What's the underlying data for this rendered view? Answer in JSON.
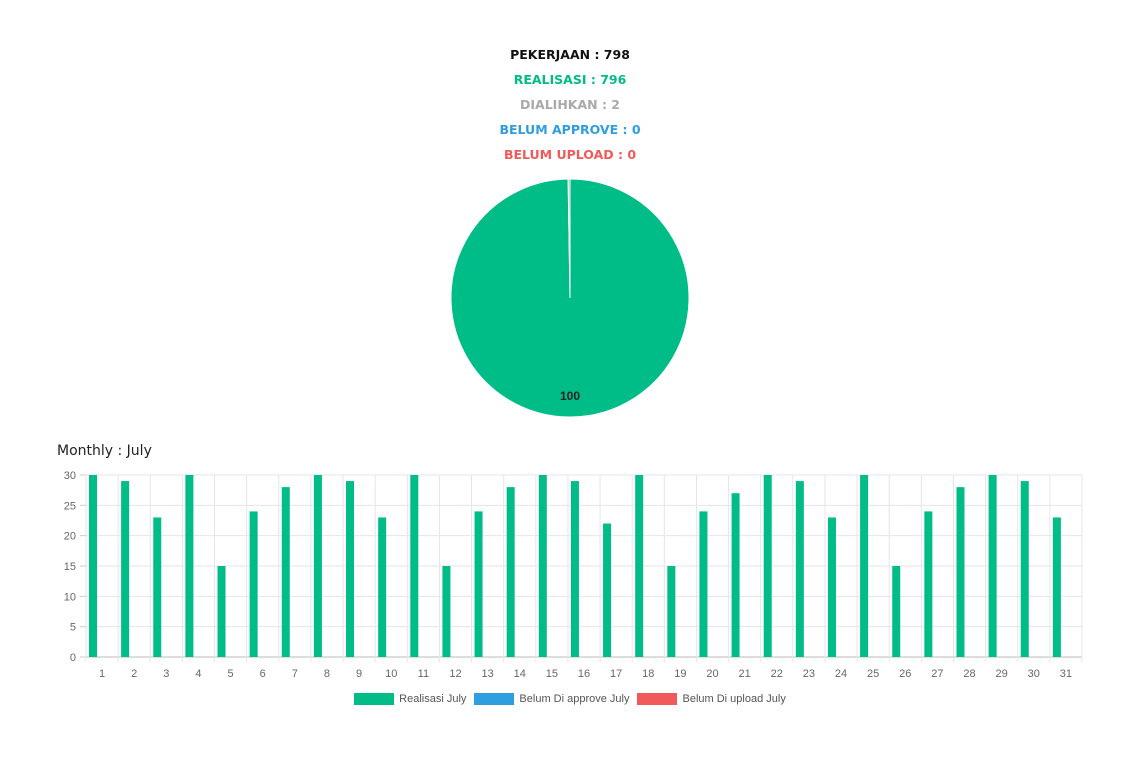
{
  "summary": {
    "pekerjaan": "PEKERJAAN : 798",
    "realisasi": "REALISASI : 796",
    "dialihkan": "DIALIHKAN : 2",
    "belum_approve": "BELUM APPROVE : 0",
    "belum_upload": "BELUM UPLOAD : 0"
  },
  "monthly_title": "Monthly : July",
  "colors": {
    "realisasi": "#00bd87",
    "belum_approve": "#2f9ede",
    "belum_upload": "#f15a5a",
    "dialihkan": "#a9a9a9",
    "grid": "#e6e6e6"
  },
  "chart_data": [
    {
      "type": "pie",
      "slices": [
        {
          "label": "REALISASI",
          "value": 796,
          "color": "#00bd87"
        },
        {
          "label": "DIALIHKAN",
          "value": 2,
          "color": "#a9a9a9"
        }
      ],
      "data_labels": [
        "100"
      ]
    },
    {
      "type": "bar",
      "categories": [
        "1",
        "2",
        "3",
        "4",
        "5",
        "6",
        "7",
        "8",
        "9",
        "10",
        "11",
        "12",
        "13",
        "14",
        "15",
        "16",
        "17",
        "18",
        "19",
        "20",
        "21",
        "22",
        "23",
        "24",
        "25",
        "26",
        "27",
        "28",
        "29",
        "30",
        "31"
      ],
      "series": [
        {
          "name": "Realisasi July",
          "color": "#00bd87",
          "values": [
            30,
            29,
            23,
            30,
            15,
            24,
            28,
            30,
            29,
            23,
            30,
            15,
            24,
            28,
            30,
            29,
            22,
            30,
            15,
            24,
            27,
            30,
            29,
            23,
            30,
            15,
            24,
            28,
            30,
            29,
            23
          ]
        },
        {
          "name": "Belum Di approve July",
          "color": "#2f9ede",
          "values": [
            0,
            0,
            0,
            0,
            0,
            0,
            0,
            0,
            0,
            0,
            0,
            0,
            0,
            0,
            0,
            0,
            0,
            0,
            0,
            0,
            0,
            0,
            0,
            0,
            0,
            0,
            0,
            0,
            0,
            0,
            0
          ]
        },
        {
          "name": "Belum Di upload July",
          "color": "#f15a5a",
          "values": [
            0,
            0,
            0,
            0,
            0,
            0,
            0,
            0,
            0,
            0,
            0,
            0,
            0,
            0,
            0,
            0,
            0,
            0,
            0,
            0,
            0,
            0,
            0,
            0,
            0,
            0,
            0,
            0,
            0,
            0,
            0
          ]
        }
      ],
      "yticks": [
        "0",
        "5",
        "10",
        "15",
        "20",
        "25",
        "30"
      ],
      "ylim": [
        0,
        30
      ],
      "grid": true,
      "legend": "bottom"
    }
  ]
}
